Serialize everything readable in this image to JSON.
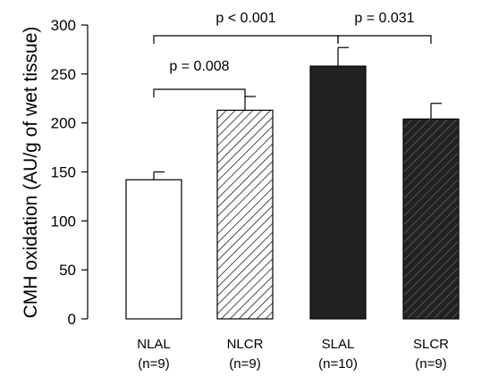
{
  "chart_data": {
    "type": "bar",
    "ylabel": "CMH oxidation (AU/g of wet tissue)",
    "ylim": [
      0,
      300
    ],
    "yticks": [
      0,
      50,
      100,
      150,
      200,
      250,
      300
    ],
    "ytick_labels": [
      "0",
      "50",
      "100",
      "150",
      "200",
      "250",
      "300"
    ],
    "grid": false,
    "legend": "none",
    "bars": [
      {
        "label": "NLAL",
        "sublabel": "(n=9)",
        "value": 142,
        "error": 8,
        "fill": "#ffffff",
        "pattern": "none"
      },
      {
        "label": "NLCR",
        "sublabel": "(n=9)",
        "value": 213,
        "error": 14,
        "fill": "#ffffff",
        "pattern": "hatch"
      },
      {
        "label": "SLAL",
        "sublabel": "(n=10)",
        "value": 258,
        "error": 19,
        "fill": "#222222",
        "pattern": "none"
      },
      {
        "label": "SLCR",
        "sublabel": "(n=9)",
        "value": 204,
        "error": 16,
        "fill": "#222222",
        "pattern": "hatch"
      }
    ],
    "comparisons": [
      {
        "from": 0,
        "to": 1,
        "label": "p = 0.008"
      },
      {
        "from": 0,
        "to": 2,
        "label": "p < 0.001"
      },
      {
        "from": 2,
        "to": 3,
        "label": "p = 0.031"
      }
    ]
  }
}
